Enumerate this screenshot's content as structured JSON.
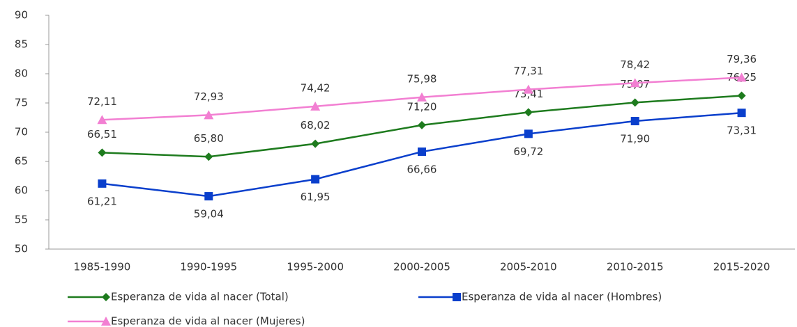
{
  "chart_data": {
    "type": "line",
    "categories": [
      "1985-1990",
      "1990-1995",
      "1995-2000",
      "2000-2005",
      "2005-2010",
      "2010-2015",
      "2015-2020"
    ],
    "series": [
      {
        "name": "Esperanza de vida al nacer (Total)",
        "color": "#1e7b1e",
        "marker": "diamond",
        "values": [
          66.51,
          65.8,
          68.02,
          71.2,
          73.41,
          75.07,
          76.25
        ],
        "value_labels": [
          "66,51",
          "65,80",
          "68,02",
          "71,20",
          "73,41",
          "75,07",
          "76,25"
        ]
      },
      {
        "name": "Esperanza de vida al nacer (Hombres)",
        "color": "#0a3fcc",
        "marker": "square",
        "values": [
          61.21,
          59.04,
          61.95,
          66.66,
          69.72,
          71.9,
          73.31
        ],
        "value_labels": [
          "61,21",
          "59,04",
          "61,95",
          "66,66",
          "69,72",
          "71,90",
          "73,31"
        ]
      },
      {
        "name": "Esperanza de vida al nacer (Mujeres)",
        "color": "#f27fd2",
        "marker": "triangle",
        "values": [
          72.11,
          72.93,
          74.42,
          75.98,
          77.31,
          78.42,
          79.36
        ],
        "value_labels": [
          "72,11",
          "72,93",
          "74,42",
          "75,98",
          "77,31",
          "78,42",
          "79,36"
        ]
      }
    ],
    "ylim": [
      50,
      90
    ],
    "yticks": [
      50,
      55,
      60,
      65,
      70,
      75,
      80,
      85,
      90
    ],
    "grid": false
  }
}
